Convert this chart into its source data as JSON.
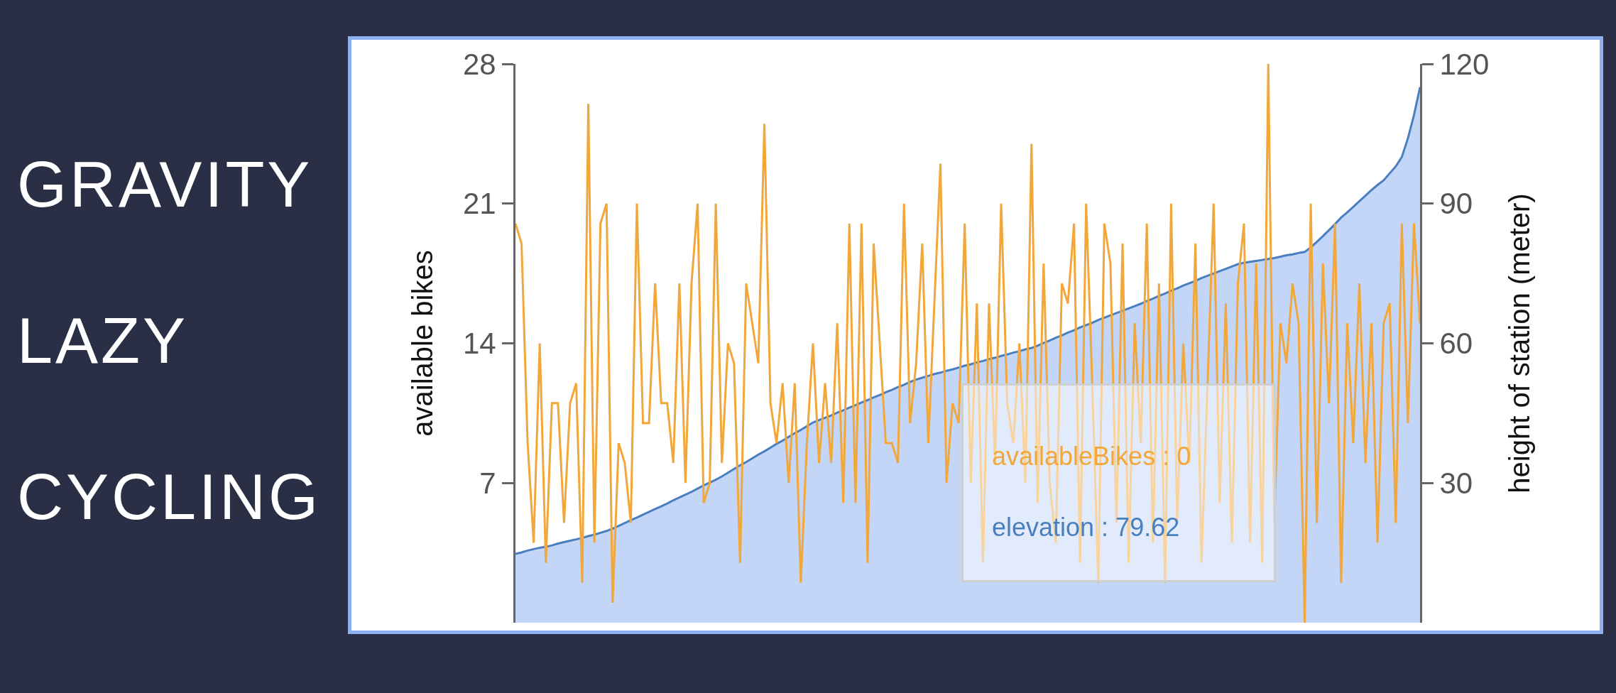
{
  "chart_data": {
    "type": "line",
    "title": "GRAVITY LAZY CYCLING",
    "ylabel": "available bikes",
    "y2label": "height of station (meter)",
    "annotations": [
      "availableBikes : 0",
      "elevation : 79.62"
    ],
    "categories": [
      null,
      null,
      null,
      null,
      null,
      null,
      null,
      null,
      null,
      null,
      null,
      null,
      null,
      null,
      null,
      null,
      null,
      null,
      null,
      null,
      null,
      null,
      null,
      null,
      null,
      null,
      null,
      null,
      null,
      null,
      null,
      null,
      null,
      null,
      null,
      null,
      null,
      null,
      null,
      null,
      null,
      null,
      null,
      null,
      null,
      null,
      null,
      null,
      null,
      null,
      null,
      null,
      null,
      null,
      null,
      null,
      null,
      null,
      null,
      null,
      null,
      null,
      null,
      null,
      null,
      null,
      null,
      null,
      null,
      null,
      null,
      null,
      null,
      null,
      null,
      null,
      null,
      null,
      null,
      null,
      null,
      null,
      null,
      null,
      null,
      null,
      null,
      null,
      null,
      null,
      null,
      null,
      null,
      null,
      null,
      null,
      null,
      null,
      null,
      null,
      null,
      null,
      null,
      null,
      null,
      null,
      null,
      null,
      null,
      null,
      null,
      null,
      null,
      null,
      null,
      null,
      null,
      null,
      null,
      null,
      null,
      null,
      null,
      null,
      null,
      null,
      null,
      null,
      null,
      null,
      null,
      null,
      null,
      null,
      null,
      null,
      null,
      null,
      null,
      null,
      null,
      null,
      null,
      null,
      null,
      null,
      null,
      null,
      null,
      null
    ],
    "series": [
      {
        "type": "line",
        "color": "#f2a73b",
        "values": [
          20,
          19,
          9,
          4,
          14,
          3,
          11,
          11,
          5,
          11,
          12,
          2,
          26,
          4,
          20,
          21,
          1,
          9,
          8,
          5,
          21,
          10,
          10,
          17,
          11,
          11,
          8,
          17,
          7,
          17,
          21,
          6,
          7,
          21,
          8,
          14,
          13,
          3,
          17,
          15,
          13,
          25,
          11,
          9,
          12,
          7,
          12,
          2,
          9,
          14,
          8,
          12,
          8,
          15,
          6,
          20,
          6,
          20,
          3,
          19,
          14,
          9,
          9,
          8,
          21,
          10,
          13,
          19,
          9,
          16,
          23,
          7,
          11,
          10,
          20,
          7,
          16,
          3,
          16,
          8,
          21,
          11,
          9,
          14,
          7,
          24,
          6,
          18,
          7,
          4,
          17,
          16,
          20,
          3,
          21,
          12,
          2,
          20,
          18,
          5,
          19,
          3,
          15,
          9,
          20,
          4,
          17,
          2,
          21,
          5,
          14,
          8,
          19,
          3,
          12,
          21,
          6,
          16,
          4,
          17,
          20,
          4,
          18,
          3,
          28,
          5,
          15,
          13,
          17,
          15,
          0,
          21,
          5,
          18,
          11,
          20,
          2,
          15,
          9,
          17,
          8,
          15,
          4,
          15,
          16,
          5,
          20,
          10,
          20,
          15
        ]
      },
      {
        "type": "area",
        "axis": "y2",
        "color": "#4a7fbf",
        "values": [
          14.8,
          15.1,
          15.5,
          15.8,
          16.1,
          16.3,
          16.6,
          17.0,
          17.3,
          17.6,
          17.9,
          18.2,
          18.6,
          18.9,
          19.3,
          19.7,
          20.2,
          20.8,
          21.4,
          22.0,
          22.6,
          23.2,
          23.8,
          24.4,
          25.0,
          25.6,
          26.3,
          26.9,
          27.5,
          28.1,
          28.8,
          29.5,
          30.1,
          30.7,
          31.4,
          32.2,
          33.0,
          33.8,
          34.5,
          35.3,
          36.1,
          36.8,
          37.6,
          38.4,
          39.1,
          39.9,
          40.7,
          41.4,
          42.2,
          43.0,
          43.5,
          44.0,
          44.5,
          45.1,
          45.6,
          46.2,
          46.7,
          47.3,
          47.8,
          48.4,
          48.9,
          49.5,
          50.0,
          50.6,
          51.1,
          51.7,
          52.2,
          52.6,
          53.0,
          53.4,
          53.7,
          54.1,
          54.4,
          54.8,
          55.2,
          55.5,
          55.9,
          56.2,
          56.6,
          56.9,
          57.3,
          57.6,
          58.0,
          58.3,
          58.7,
          59.0,
          59.5,
          60.1,
          60.6,
          61.2,
          61.7,
          62.3,
          62.8,
          63.4,
          63.9,
          64.4,
          65.0,
          65.5,
          66.0,
          66.5,
          67.0,
          67.5,
          68.0,
          68.5,
          69.1,
          69.6,
          70.2,
          70.7,
          71.3,
          71.8,
          72.4,
          72.9,
          73.4,
          74.0,
          74.5,
          75.0,
          75.5,
          76.0,
          76.5,
          77.0,
          77.3,
          77.5,
          77.7,
          77.9,
          78.1,
          78.3,
          78.6,
          78.9,
          79.1,
          79.4,
          79.62,
          80.6,
          81.8,
          83.0,
          84.3,
          85.6,
          87.0,
          88.1,
          89.3,
          90.5,
          91.7,
          92.9,
          94.0,
          95.0,
          96.5,
          98.0,
          100.0,
          104.0,
          109.0,
          115.0
        ]
      }
    ],
    "ylim": [
      0,
      28
    ],
    "yticks": [
      7,
      14,
      21,
      28
    ],
    "y2lim": [
      0,
      120
    ],
    "y2ticks": [
      30,
      60,
      90,
      120
    ],
    "tick_labels": "y",
    "grid": false,
    "marker": "none",
    "line_style": "solid"
  }
}
